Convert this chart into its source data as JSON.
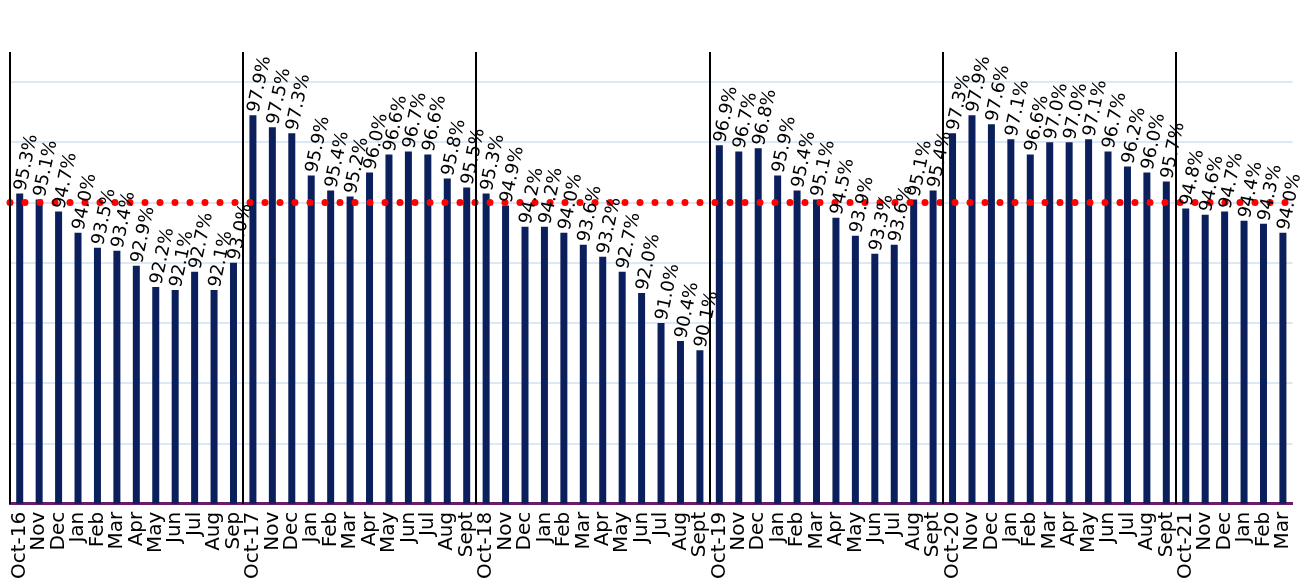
{
  "chart_data": {
    "type": "bar",
    "categories": [
      "Oct-16",
      "Nov",
      "Dec",
      "Jan",
      "Feb",
      "Mar",
      "Apr",
      "May",
      "Jun",
      "Jul",
      "Aug",
      "Sep",
      "Oct-17",
      "Nov",
      "Dec",
      "Jan",
      "Feb",
      "Mar",
      "Apr",
      "May",
      "Jun",
      "Jul",
      "Aug",
      "Sept",
      "Oct-18",
      "Nov",
      "Dec",
      "Jan",
      "Feb",
      "Mar",
      "Apr",
      "May",
      "Jun",
      "Jul",
      "Aug",
      "Sept",
      "Oct-19",
      "Nov",
      "Dec",
      "Jan",
      "Feb",
      "Mar",
      "Apr",
      "May",
      "Jun",
      "Jul",
      "Aug",
      "Sept",
      "Oct-20",
      "Nov",
      "Dec",
      "Jan",
      "Feb",
      "Mar",
      "Apr",
      "May",
      "Jun",
      "Jul",
      "Aug",
      "Sept",
      "Oct-21",
      "Nov",
      "Dec",
      "Jan",
      "Feb",
      "Mar"
    ],
    "values": [
      95.3,
      95.1,
      94.7,
      94.0,
      93.5,
      93.4,
      92.9,
      92.2,
      92.1,
      92.7,
      92.1,
      93.0,
      97.9,
      97.5,
      97.3,
      95.9,
      95.4,
      95.2,
      96.0,
      96.6,
      96.7,
      96.6,
      95.8,
      95.5,
      95.3,
      94.9,
      94.2,
      94.2,
      94.0,
      93.6,
      93.2,
      92.7,
      92.0,
      91.0,
      90.4,
      90.1,
      96.9,
      96.7,
      96.8,
      95.9,
      95.4,
      95.1,
      94.5,
      93.9,
      93.3,
      93.6,
      95.1,
      95.4,
      97.3,
      97.9,
      97.6,
      97.1,
      96.6,
      97.0,
      97.0,
      97.1,
      96.7,
      96.2,
      96.0,
      95.7,
      94.8,
      94.6,
      94.7,
      94.4,
      94.3,
      94.0
    ],
    "value_labels": [
      "95.3%",
      "95.1%",
      "94.7%",
      "94.0%",
      "93.5%",
      "93.4%",
      "92.9%",
      "92.2%",
      "92.1%",
      "92.7%",
      "92.1%",
      "93.0%",
      "97.9%",
      "97.5%",
      "97.3%",
      "95.9%",
      "95.4%",
      "95.2%",
      "96.0%",
      "96.6%",
      "96.7%",
      "96.6%",
      "95.8%",
      "95.5%",
      "95.3%",
      "94.9%",
      "94.2%",
      "94.2%",
      "94.0%",
      "93.6%",
      "93.2%",
      "92.7%",
      "92.0%",
      "91.0%",
      "90.4%",
      "90.1%",
      "96.9%",
      "96.7%",
      "96.8%",
      "95.9%",
      "95.4%",
      "95.1%",
      "94.5%",
      "93.9%",
      "93.3%",
      "93.6%",
      "95.1%",
      "95.4%",
      "97.3%",
      "97.9%",
      "97.6%",
      "97.1%",
      "96.6%",
      "97.0%",
      "97.0%",
      "97.1%",
      "96.7%",
      "96.2%",
      "96.0%",
      "95.7%",
      "94.8%",
      "94.6%",
      "94.7%",
      "94.4%",
      "94.3%",
      "94.0%"
    ],
    "color": "#0a1f5c",
    "ylim": [
      85,
      100
    ],
    "yticks": [
      {
        "value": 85,
        "label": null
      },
      {
        "value": 87,
        "label": null
      },
      {
        "value": 89,
        "label": null
      },
      {
        "value": 91,
        "label": null
      },
      {
        "value": 93,
        "label": null
      },
      {
        "value": 95,
        "label": null
      },
      {
        "value": 97,
        "label": null
      },
      {
        "value": 99,
        "label": null
      }
    ],
    "tick_labels": "x",
    "grid": "y",
    "legend": false,
    "ref_lines": [
      {
        "axis": "y",
        "value": 95,
        "color": "#ff0000",
        "line_style": "dotted"
      }
    ]
  }
}
